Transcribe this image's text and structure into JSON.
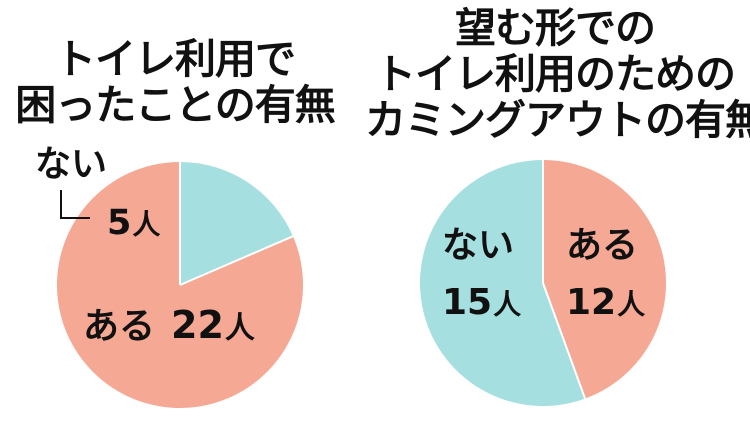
{
  "chart_data": [
    {
      "type": "pie",
      "title": [
        "トイレ利用で",
        "困ったことの有無"
      ],
      "unit": "人",
      "slices": [
        {
          "label": "ない",
          "value": 5,
          "color": "#a6dfe0"
        },
        {
          "label": "ある",
          "value": 22,
          "color": "#f5a893"
        }
      ]
    },
    {
      "type": "pie",
      "title": [
        "望む形での",
        "トイレ利用のための",
        "カミングアウトの有無"
      ],
      "unit": "人",
      "slices": [
        {
          "label": "ある",
          "value": 12,
          "color": "#f5a893"
        },
        {
          "label": "ない",
          "value": 15,
          "color": "#a6dfe0"
        }
      ]
    }
  ]
}
